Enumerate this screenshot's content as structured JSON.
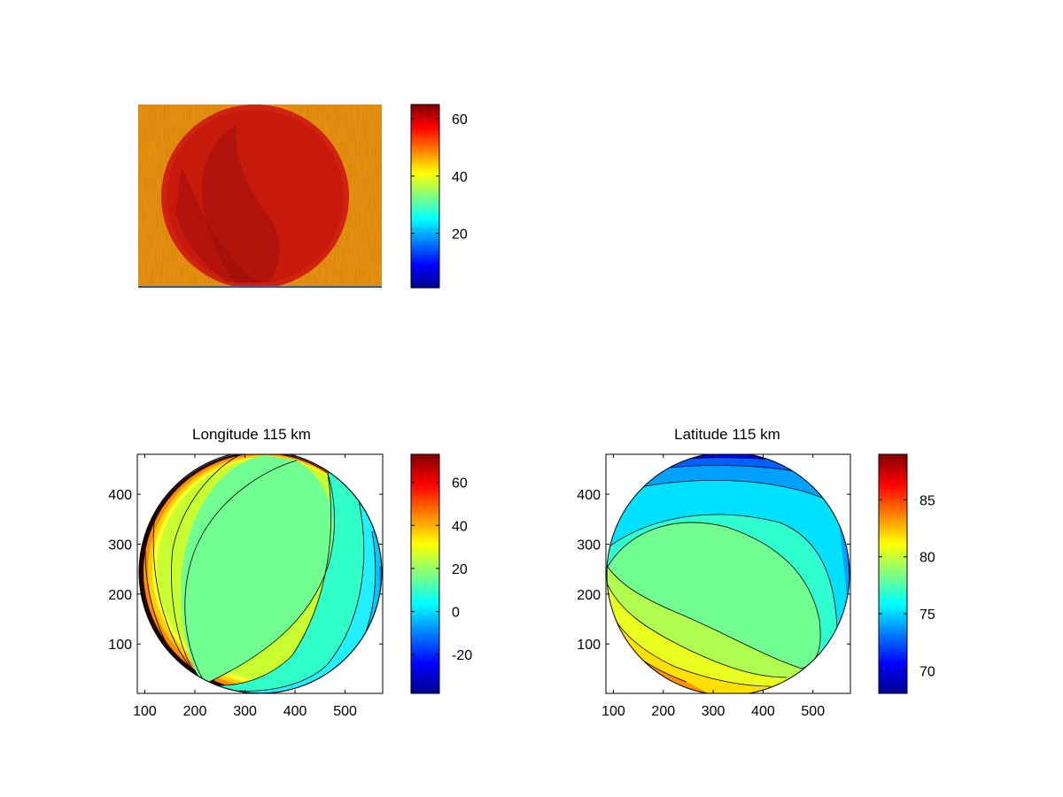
{
  "chart_data": [
    {
      "type": "heatmap",
      "title": "",
      "description_source": "raw intensity image",
      "axes_visible": false,
      "colormap": "jet",
      "clim": [
        1,
        65
      ],
      "colorbar": {
        "ticks": [
          20,
          40,
          60
        ],
        "tick_labels": [
          "20",
          "40",
          "60"
        ]
      },
      "background_value": 47,
      "disk_value": 62
    },
    {
      "type": "heatmap",
      "title": "Longitude 115 km",
      "colormap": "jet",
      "xlim": [
        85,
        575
      ],
      "ylim": [
        1,
        480
      ],
      "xticks": [
        100,
        200,
        300,
        400,
        500
      ],
      "xtick_labels": [
        "100",
        "200",
        "300",
        "400",
        "500"
      ],
      "yticks": [
        100,
        200,
        300,
        400
      ],
      "ytick_labels": [
        "100",
        "200",
        "300",
        "400"
      ],
      "clim": [
        -38,
        73
      ],
      "colorbar": {
        "ticks": [
          -20,
          0,
          20,
          40,
          60
        ],
        "tick_labels": [
          "-20",
          "0",
          "20",
          "40",
          "60"
        ]
      },
      "disk": {
        "center": [
          330,
          240
        ],
        "radius": 245
      },
      "contour_levels": [
        [
          65,
          70
        ],
        [
          50,
          55
        ],
        [
          38,
          32
        ],
        [
          25,
          28
        ],
        [
          18,
          22
        ],
        [
          5,
          8
        ],
        [
          -5,
          -2
        ],
        [
          -15,
          -18
        ],
        [
          -25,
          -30
        ]
      ]
    },
    {
      "type": "heatmap",
      "title": "Latitude 115 km",
      "colormap": "jet",
      "xlim": [
        85,
        575
      ],
      "ylim": [
        1,
        480
      ],
      "xticks": [
        100,
        200,
        300,
        400,
        500
      ],
      "xtick_labels": [
        "100",
        "200",
        "300",
        "400",
        "500"
      ],
      "yticks": [
        100,
        200,
        300,
        400
      ],
      "ytick_labels": [
        "100",
        "200",
        "300",
        "400"
      ],
      "clim": [
        68,
        89
      ],
      "colorbar": {
        "ticks": [
          70,
          75,
          80,
          85
        ],
        "tick_labels": [
          "70",
          "75",
          "80",
          "85"
        ]
      },
      "disk": {
        "center": [
          330,
          240
        ],
        "radius": 245
      }
    }
  ]
}
